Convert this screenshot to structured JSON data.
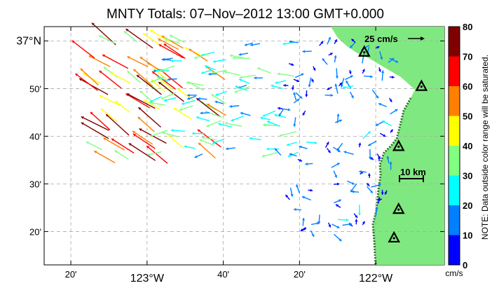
{
  "title": "MNTY Totals: 07–Nov–2012 13:00 GMT+0.000",
  "lat_labels": [
    {
      "text": "37°N",
      "lat": 37.0,
      "major": true
    },
    {
      "text": "50'",
      "lat": 36.8333,
      "major": false
    },
    {
      "text": "40'",
      "lat": 36.6667,
      "major": false
    },
    {
      "text": "30'",
      "lat": 36.5,
      "major": false
    },
    {
      "text": "20'",
      "lat": 36.3333,
      "major": false
    }
  ],
  "lon_labels": [
    {
      "text": "20'",
      "lon": -123.3333,
      "major": false
    },
    {
      "text": "123°W",
      "lon": -123.0,
      "major": true
    },
    {
      "text": "40'",
      "lon": -122.6667,
      "major": false
    },
    {
      "text": "20'",
      "lon": -122.3333,
      "major": false
    },
    {
      "text": "122°W",
      "lon": -122.0,
      "major": true
    }
  ],
  "extent": {
    "lon_min": -123.45,
    "lon_max": -121.7,
    "lat_min": 36.2167,
    "lat_max": 37.05
  },
  "scale_vector_label": "25 cm/s",
  "scale_bar_label": "10 km",
  "colorbar": {
    "ticks": [
      "80",
      "70",
      "60",
      "50",
      "40",
      "30",
      "20",
      "10",
      "0"
    ],
    "unit": "cm/s",
    "note": "NOTE: Data outside color range will be saturated.",
    "colors": [
      "#0000ff",
      "#0080ff",
      "#00ffff",
      "#80ff80",
      "#ffff00",
      "#ff8000",
      "#ff0000",
      "#800000"
    ]
  },
  "colors": {
    "land": "#80e880",
    "coast_shadow": "#2f6f2f",
    "grid": "#aaaaaa"
  },
  "stations": [
    {
      "name": "station",
      "lon": -122.05,
      "lat": 36.96
    },
    {
      "name": "station",
      "lon": -121.8,
      "lat": 36.84
    },
    {
      "name": "station",
      "lon": -121.9,
      "lat": 36.63
    },
    {
      "name": "station",
      "lon": -121.9,
      "lat": 36.41
    },
    {
      "name": "station",
      "lon": -121.92,
      "lat": 36.31
    }
  ]
}
